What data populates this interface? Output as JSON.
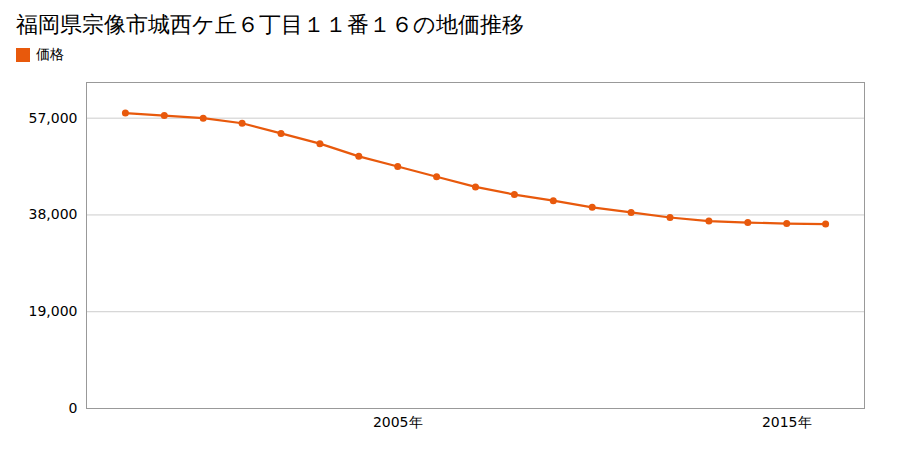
{
  "chart_data": {
    "type": "line",
    "title": "福岡県宗像市城西ケ丘６丁目１１番１６の地価推移",
    "x": [
      1998,
      1999,
      2000,
      2001,
      2002,
      2003,
      2004,
      2005,
      2006,
      2007,
      2008,
      2009,
      2010,
      2011,
      2012,
      2013,
      2014,
      2015,
      2016
    ],
    "series": [
      {
        "name": "価格",
        "color": "#E8590C",
        "marker": "circle",
        "values": [
          58000,
          57500,
          57000,
          56000,
          54000,
          52000,
          49500,
          47500,
          45500,
          43500,
          42000,
          40800,
          39500,
          38500,
          37500,
          36800,
          36500,
          36300,
          36200
        ]
      }
    ],
    "xlim": [
      1997,
      2017
    ],
    "xticks": [
      {
        "value": 2005,
        "label": "2005年"
      },
      {
        "value": 2015,
        "label": "2015年"
      }
    ],
    "ylim": [
      0,
      64000
    ],
    "yticks": [
      0,
      {
        "value": 19000,
        "label": "19,000"
      },
      {
        "value": 38000,
        "label": "38,000"
      },
      {
        "value": 57000,
        "label": "57,000"
      }
    ],
    "grid": "y",
    "legend": "top"
  }
}
